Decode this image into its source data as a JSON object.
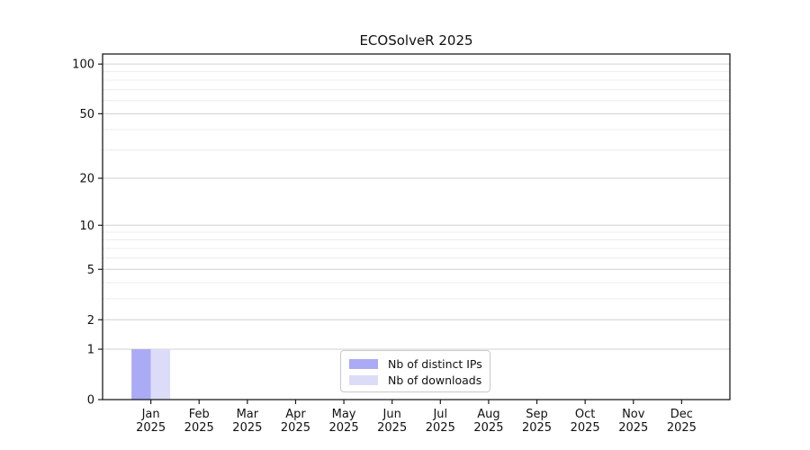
{
  "page": {
    "title": "ECOSolveR 2025"
  },
  "chart_data": {
    "type": "bar",
    "title": "ECOSolveR 2025",
    "categories_months": [
      "Jan",
      "Feb",
      "Mar",
      "Apr",
      "May",
      "Jun",
      "Jul",
      "Aug",
      "Sep",
      "Oct",
      "Nov",
      "Dec"
    ],
    "categories_year": "2025",
    "series": [
      {
        "name": "Nb of distinct IPs",
        "color": "#aaaaf5",
        "values": [
          1,
          0,
          0,
          0,
          0,
          0,
          0,
          0,
          0,
          0,
          0,
          0
        ]
      },
      {
        "name": "Nb of downloads",
        "color": "#dcdcf8",
        "values": [
          1,
          0,
          0,
          0,
          0,
          0,
          0,
          0,
          0,
          0,
          0,
          0
        ]
      }
    ],
    "y_axis": {
      "scale": "log1p",
      "major_ticks": [
        0,
        1,
        2,
        5,
        10,
        20,
        50,
        100
      ],
      "minor_ticks": [
        3,
        4,
        6,
        7,
        8,
        9,
        30,
        40,
        60,
        70,
        80,
        90
      ],
      "max": 115
    },
    "x_axis": {
      "tick_count": 12
    },
    "grid": "horizontal-only",
    "legend": {
      "position": "bottom-center"
    },
    "colors": {
      "frame": "#1c1c1c",
      "tick": "#1c1c1c",
      "label": "#111111",
      "grid_major": "#d0d0d0",
      "grid_minor": "#ececec",
      "background": "#ffffff"
    }
  }
}
